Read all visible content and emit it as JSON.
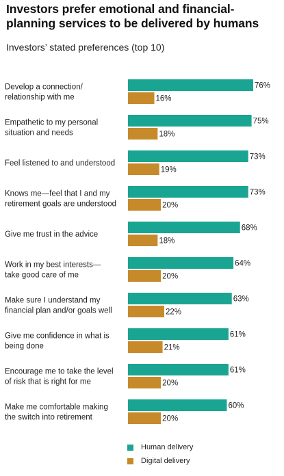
{
  "chart_data": {
    "type": "bar",
    "orientation": "horizontal",
    "title": "Investors prefer emotional and financial-planning services to be delivered by humans",
    "subtitle": "Investors’ stated preferences (top 10)",
    "categories": [
      [
        "Develop a connection/",
        "relationship with me"
      ],
      [
        "Empathetic to my personal",
        "situation and needs"
      ],
      [
        "Feel listened to and understood"
      ],
      [
        "Knows me—feel that I and my",
        "retirement goals are understood"
      ],
      [
        "Give me trust in the advice"
      ],
      [
        "Work in my best interests—",
        "take good care of me"
      ],
      [
        "Make sure I understand my",
        "financial plan and/or goals well"
      ],
      [
        "Give me confidence in what is",
        "being done"
      ],
      [
        "Encourage me to take the level",
        "of risk that is right for me"
      ],
      [
        "Make me comfortable making",
        "the switch into retirement"
      ]
    ],
    "series": [
      {
        "name": "Human delivery",
        "color": "#1aa592",
        "values": [
          76,
          75,
          73,
          73,
          68,
          64,
          63,
          61,
          61,
          60
        ]
      },
      {
        "name": "Digital delivery",
        "color": "#c68a2b",
        "values": [
          16,
          18,
          19,
          20,
          18,
          20,
          22,
          21,
          20,
          20
        ]
      }
    ],
    "value_suffix": "%",
    "xlim": [
      0,
      76
    ],
    "grid": false,
    "legend_position": "bottom"
  }
}
